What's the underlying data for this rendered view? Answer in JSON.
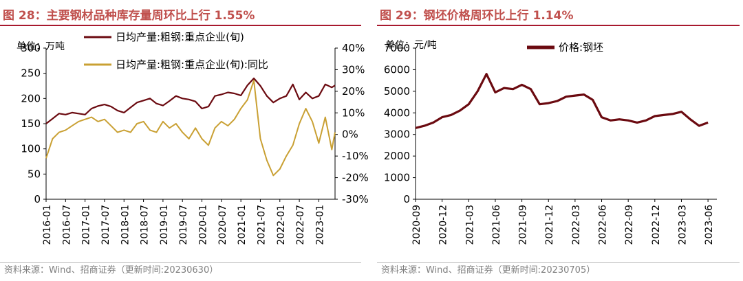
{
  "colors": {
    "title": "#c0504d",
    "rule": "#a8192e",
    "source": "#7f7f7f",
    "series_dark": "#6b0a10",
    "series_gold": "#c9a033"
  },
  "left": {
    "title": "图 28：主要钢材品种库存量周环比上行 1.55%",
    "source": "资料来源：Wind、招商证券（更新时间:20230630）"
  },
  "right": {
    "title": "图 29：钢坯价格周环比上行 1.14%",
    "source": "资料来源：Wind、招商证券（更新时间:20230705）"
  },
  "chart_data": [
    {
      "type": "line",
      "unit_label": "单位：万吨",
      "x_ticks": [
        "2016-01",
        "2016-07",
        "2017-01",
        "2017-07",
        "2018-01",
        "2018-07",
        "2019-01",
        "2019-07",
        "2020-01",
        "2020-07",
        "2021-01",
        "2021-07",
        "2022-01",
        "2022-07",
        "2023-01"
      ],
      "x_range": [
        "2016-01",
        "2023-06"
      ],
      "y_left": {
        "range": [
          0,
          300
        ],
        "ticks": [
          "0",
          "50",
          "100",
          "150",
          "200",
          "250",
          "300"
        ]
      },
      "y_right": {
        "range": [
          -0.3,
          0.4
        ],
        "ticks": [
          "-30%",
          "-20%",
          "-10%",
          "0%",
          "10%",
          "20%",
          "30%",
          "40%"
        ]
      },
      "legend_position": "top",
      "series": [
        {
          "name": "日均产量:粗钢:重点企业(旬)",
          "axis": "left",
          "points": [
            [
              "2016-01",
              150
            ],
            [
              "2016-03",
              160
            ],
            [
              "2016-05",
              170
            ],
            [
              "2016-07",
              168
            ],
            [
              "2016-09",
              172
            ],
            [
              "2016-11",
              170
            ],
            [
              "2017-01",
              168
            ],
            [
              "2017-03",
              180
            ],
            [
              "2017-05",
              185
            ],
            [
              "2017-07",
              188
            ],
            [
              "2017-09",
              184
            ],
            [
              "2017-11",
              176
            ],
            [
              "2018-01",
              172
            ],
            [
              "2018-03",
              182
            ],
            [
              "2018-05",
              192
            ],
            [
              "2018-07",
              196
            ],
            [
              "2018-09",
              200
            ],
            [
              "2018-11",
              190
            ],
            [
              "2019-01",
              186
            ],
            [
              "2019-03",
              195
            ],
            [
              "2019-05",
              205
            ],
            [
              "2019-07",
              200
            ],
            [
              "2019-09",
              198
            ],
            [
              "2019-11",
              194
            ],
            [
              "2020-01",
              180
            ],
            [
              "2020-03",
              184
            ],
            [
              "2020-05",
              205
            ],
            [
              "2020-07",
              208
            ],
            [
              "2020-09",
              212
            ],
            [
              "2020-11",
              210
            ],
            [
              "2021-01",
              206
            ],
            [
              "2021-03",
              226
            ],
            [
              "2021-05",
              240
            ],
            [
              "2021-07",
              225
            ],
            [
              "2021-09",
              205
            ],
            [
              "2021-11",
              192
            ],
            [
              "2022-01",
              200
            ],
            [
              "2022-03",
              205
            ],
            [
              "2022-05",
              228
            ],
            [
              "2022-07",
              198
            ],
            [
              "2022-09",
              212
            ],
            [
              "2022-11",
              200
            ],
            [
              "2023-01",
              205
            ],
            [
              "2023-03",
              228
            ],
            [
              "2023-05",
              222
            ],
            [
              "2023-06",
              226
            ]
          ]
        },
        {
          "name": "日均产量:粗钢:重点企业(旬):同比",
          "axis": "right",
          "points": [
            [
              "2016-01",
              -0.11
            ],
            [
              "2016-03",
              -0.02
            ],
            [
              "2016-05",
              0.01
            ],
            [
              "2016-07",
              0.02
            ],
            [
              "2016-09",
              0.04
            ],
            [
              "2016-11",
              0.06
            ],
            [
              "2017-01",
              0.07
            ],
            [
              "2017-03",
              0.08
            ],
            [
              "2017-05",
              0.06
            ],
            [
              "2017-07",
              0.07
            ],
            [
              "2017-09",
              0.04
            ],
            [
              "2017-11",
              0.01
            ],
            [
              "2018-01",
              0.02
            ],
            [
              "2018-03",
              0.01
            ],
            [
              "2018-05",
              0.05
            ],
            [
              "2018-07",
              0.06
            ],
            [
              "2018-09",
              0.02
            ],
            [
              "2018-11",
              0.01
            ],
            [
              "2019-01",
              0.06
            ],
            [
              "2019-03",
              0.03
            ],
            [
              "2019-05",
              0.05
            ],
            [
              "2019-07",
              0.01
            ],
            [
              "2019-09",
              -0.02
            ],
            [
              "2019-11",
              0.03
            ],
            [
              "2020-01",
              -0.02
            ],
            [
              "2020-03",
              -0.05
            ],
            [
              "2020-05",
              0.03
            ],
            [
              "2020-07",
              0.06
            ],
            [
              "2020-09",
              0.04
            ],
            [
              "2020-11",
              0.07
            ],
            [
              "2021-01",
              0.12
            ],
            [
              "2021-03",
              0.16
            ],
            [
              "2021-05",
              0.25
            ],
            [
              "2021-07",
              -0.02
            ],
            [
              "2021-09",
              -0.12
            ],
            [
              "2021-11",
              -0.19
            ],
            [
              "2022-01",
              -0.16
            ],
            [
              "2022-03",
              -0.1
            ],
            [
              "2022-05",
              -0.05
            ],
            [
              "2022-07",
              0.05
            ],
            [
              "2022-09",
              0.12
            ],
            [
              "2022-11",
              0.06
            ],
            [
              "2023-01",
              -0.04
            ],
            [
              "2023-03",
              0.08
            ],
            [
              "2023-05",
              -0.07
            ],
            [
              "2023-06",
              0.01
            ]
          ]
        }
      ]
    },
    {
      "type": "line",
      "unit_label": "单位：元/吨",
      "x_ticks": [
        "2020-09",
        "2020-12",
        "2021-03",
        "2021-06",
        "2021-09",
        "2021-12",
        "2022-03",
        "2022-06",
        "2022-09",
        "2022-12",
        "2023-03",
        "2023-06"
      ],
      "x_range": [
        "2020-09",
        "2023-07"
      ],
      "y_left": {
        "range": [
          0,
          7000
        ],
        "ticks": [
          "0",
          "1000",
          "2000",
          "3000",
          "4000",
          "5000",
          "6000",
          "7000"
        ]
      },
      "legend_position": "top-left",
      "series": [
        {
          "name": "价格:钢坯",
          "axis": "left",
          "points": [
            [
              "2020-09",
              3300
            ],
            [
              "2020-10",
              3400
            ],
            [
              "2020-11",
              3550
            ],
            [
              "2020-12",
              3800
            ],
            [
              "2021-01",
              3900
            ],
            [
              "2021-02",
              4100
            ],
            [
              "2021-03",
              4400
            ],
            [
              "2021-04",
              5000
            ],
            [
              "2021-05",
              5800
            ],
            [
              "2021-06",
              4950
            ],
            [
              "2021-07",
              5150
            ],
            [
              "2021-08",
              5100
            ],
            [
              "2021-09",
              5300
            ],
            [
              "2021-10",
              5100
            ],
            [
              "2021-11",
              4400
            ],
            [
              "2021-12",
              4450
            ],
            [
              "2022-01",
              4550
            ],
            [
              "2022-02",
              4750
            ],
            [
              "2022-03",
              4800
            ],
            [
              "2022-04",
              4850
            ],
            [
              "2022-05",
              4600
            ],
            [
              "2022-06",
              3800
            ],
            [
              "2022-07",
              3650
            ],
            [
              "2022-08",
              3700
            ],
            [
              "2022-09",
              3650
            ],
            [
              "2022-10",
              3550
            ],
            [
              "2022-11",
              3650
            ],
            [
              "2022-12",
              3850
            ],
            [
              "2023-01",
              3900
            ],
            [
              "2023-02",
              3950
            ],
            [
              "2023-03",
              4050
            ],
            [
              "2023-04",
              3700
            ],
            [
              "2023-05",
              3400
            ],
            [
              "2023-06",
              3550
            ]
          ]
        }
      ]
    }
  ]
}
